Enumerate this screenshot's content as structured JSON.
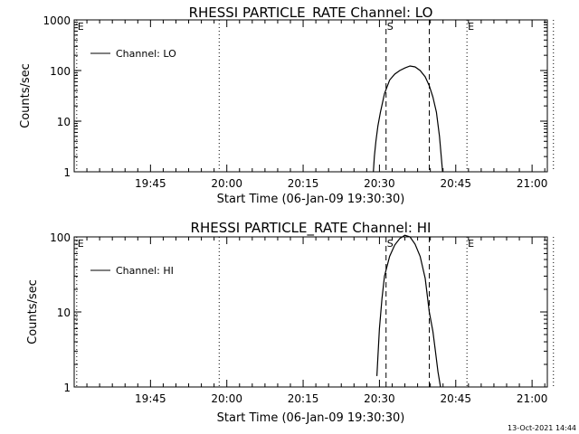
{
  "timestamp": "13-Oct-2021 14:44",
  "chart_data": [
    {
      "type": "line",
      "title": "RHESSI PARTICLE_RATE Channel: LO",
      "xlabel": "Start Time (06-Jan-09 19:30:30)",
      "ylabel": "Counts/sec",
      "yscale": "log",
      "ylim": [
        1,
        1000
      ],
      "yticks": [
        {
          "value": 1,
          "label": "1"
        },
        {
          "value": 10,
          "label": "10"
        },
        {
          "value": 100,
          "label": "100"
        },
        {
          "value": 1000,
          "label": "1000"
        }
      ],
      "xlim_minutes": [
        0,
        93
      ],
      "xticks": [
        {
          "value": 15,
          "label": "19:45"
        },
        {
          "value": 30,
          "label": "20:00"
        },
        {
          "value": 45,
          "label": "20:15"
        },
        {
          "value": 60,
          "label": "20:30"
        },
        {
          "value": 75,
          "label": "20:45"
        },
        {
          "value": 90,
          "label": "21:00"
        }
      ],
      "legend": {
        "label": "Channel: LO",
        "position": "top-left"
      },
      "markers": [
        {
          "label": "E",
          "x": 0.5,
          "style": "dotted"
        },
        {
          "label": "",
          "x": 28.5,
          "style": "dotted"
        },
        {
          "label": "S",
          "x": 61.3,
          "style": "dashed"
        },
        {
          "label": "",
          "x": 69.8,
          "style": "dashed"
        },
        {
          "label": "E",
          "x": 77.2,
          "style": "dotted"
        },
        {
          "label": "",
          "x": 94.2,
          "style": "dotted"
        }
      ],
      "series": [
        {
          "x": [
            58.8,
            59.0,
            59.3,
            59.7,
            60.2,
            61.0,
            62.0,
            63.0,
            64.0,
            65.0,
            66.0,
            67.0,
            68.0,
            69.0,
            69.8,
            70.5,
            71.2,
            71.8,
            72.4
          ],
          "y": [
            1,
            2,
            4,
            8,
            15,
            35,
            65,
            85,
            100,
            112,
            123,
            118,
            100,
            75,
            50,
            30,
            15,
            5,
            1
          ]
        }
      ]
    },
    {
      "type": "line",
      "title": "RHESSI PARTICLE_RATE Channel: HI",
      "xlabel": "Start Time (06-Jan-09 19:30:30)",
      "ylabel": "Counts/sec",
      "yscale": "log",
      "ylim": [
        1,
        100
      ],
      "yticks": [
        {
          "value": 1,
          "label": "1"
        },
        {
          "value": 10,
          "label": "10"
        },
        {
          "value": 100,
          "label": "100"
        }
      ],
      "xlim_minutes": [
        0,
        93
      ],
      "xticks": [
        {
          "value": 15,
          "label": "19:45"
        },
        {
          "value": 30,
          "label": "20:00"
        },
        {
          "value": 45,
          "label": "20:15"
        },
        {
          "value": 60,
          "label": "20:30"
        },
        {
          "value": 75,
          "label": "20:45"
        },
        {
          "value": 90,
          "label": "21:00"
        }
      ],
      "legend": {
        "label": "Channel: HI",
        "position": "top-left"
      },
      "markers": [
        {
          "label": "E",
          "x": 0.5,
          "style": "dotted"
        },
        {
          "label": "",
          "x": 28.5,
          "style": "dotted"
        },
        {
          "label": "S",
          "x": 61.3,
          "style": "dashed"
        },
        {
          "label": "",
          "x": 69.8,
          "style": "dashed"
        },
        {
          "label": "E",
          "x": 77.2,
          "style": "dotted"
        },
        {
          "label": "",
          "x": 94.2,
          "style": "dotted"
        }
      ],
      "series": [
        {
          "x": [
            59.5,
            59.7,
            60.0,
            60.5,
            61.0,
            62.0,
            63.0,
            64.0,
            65.0,
            66.0,
            67.0,
            68.0,
            69.0,
            69.8,
            70.5,
            71.0,
            71.5,
            72.0
          ],
          "y": [
            1.4,
            2.5,
            6,
            15,
            30,
            55,
            78,
            95,
            105,
            100,
            80,
            55,
            28,
            10,
            5.5,
            3,
            1.6,
            1
          ]
        }
      ]
    }
  ]
}
